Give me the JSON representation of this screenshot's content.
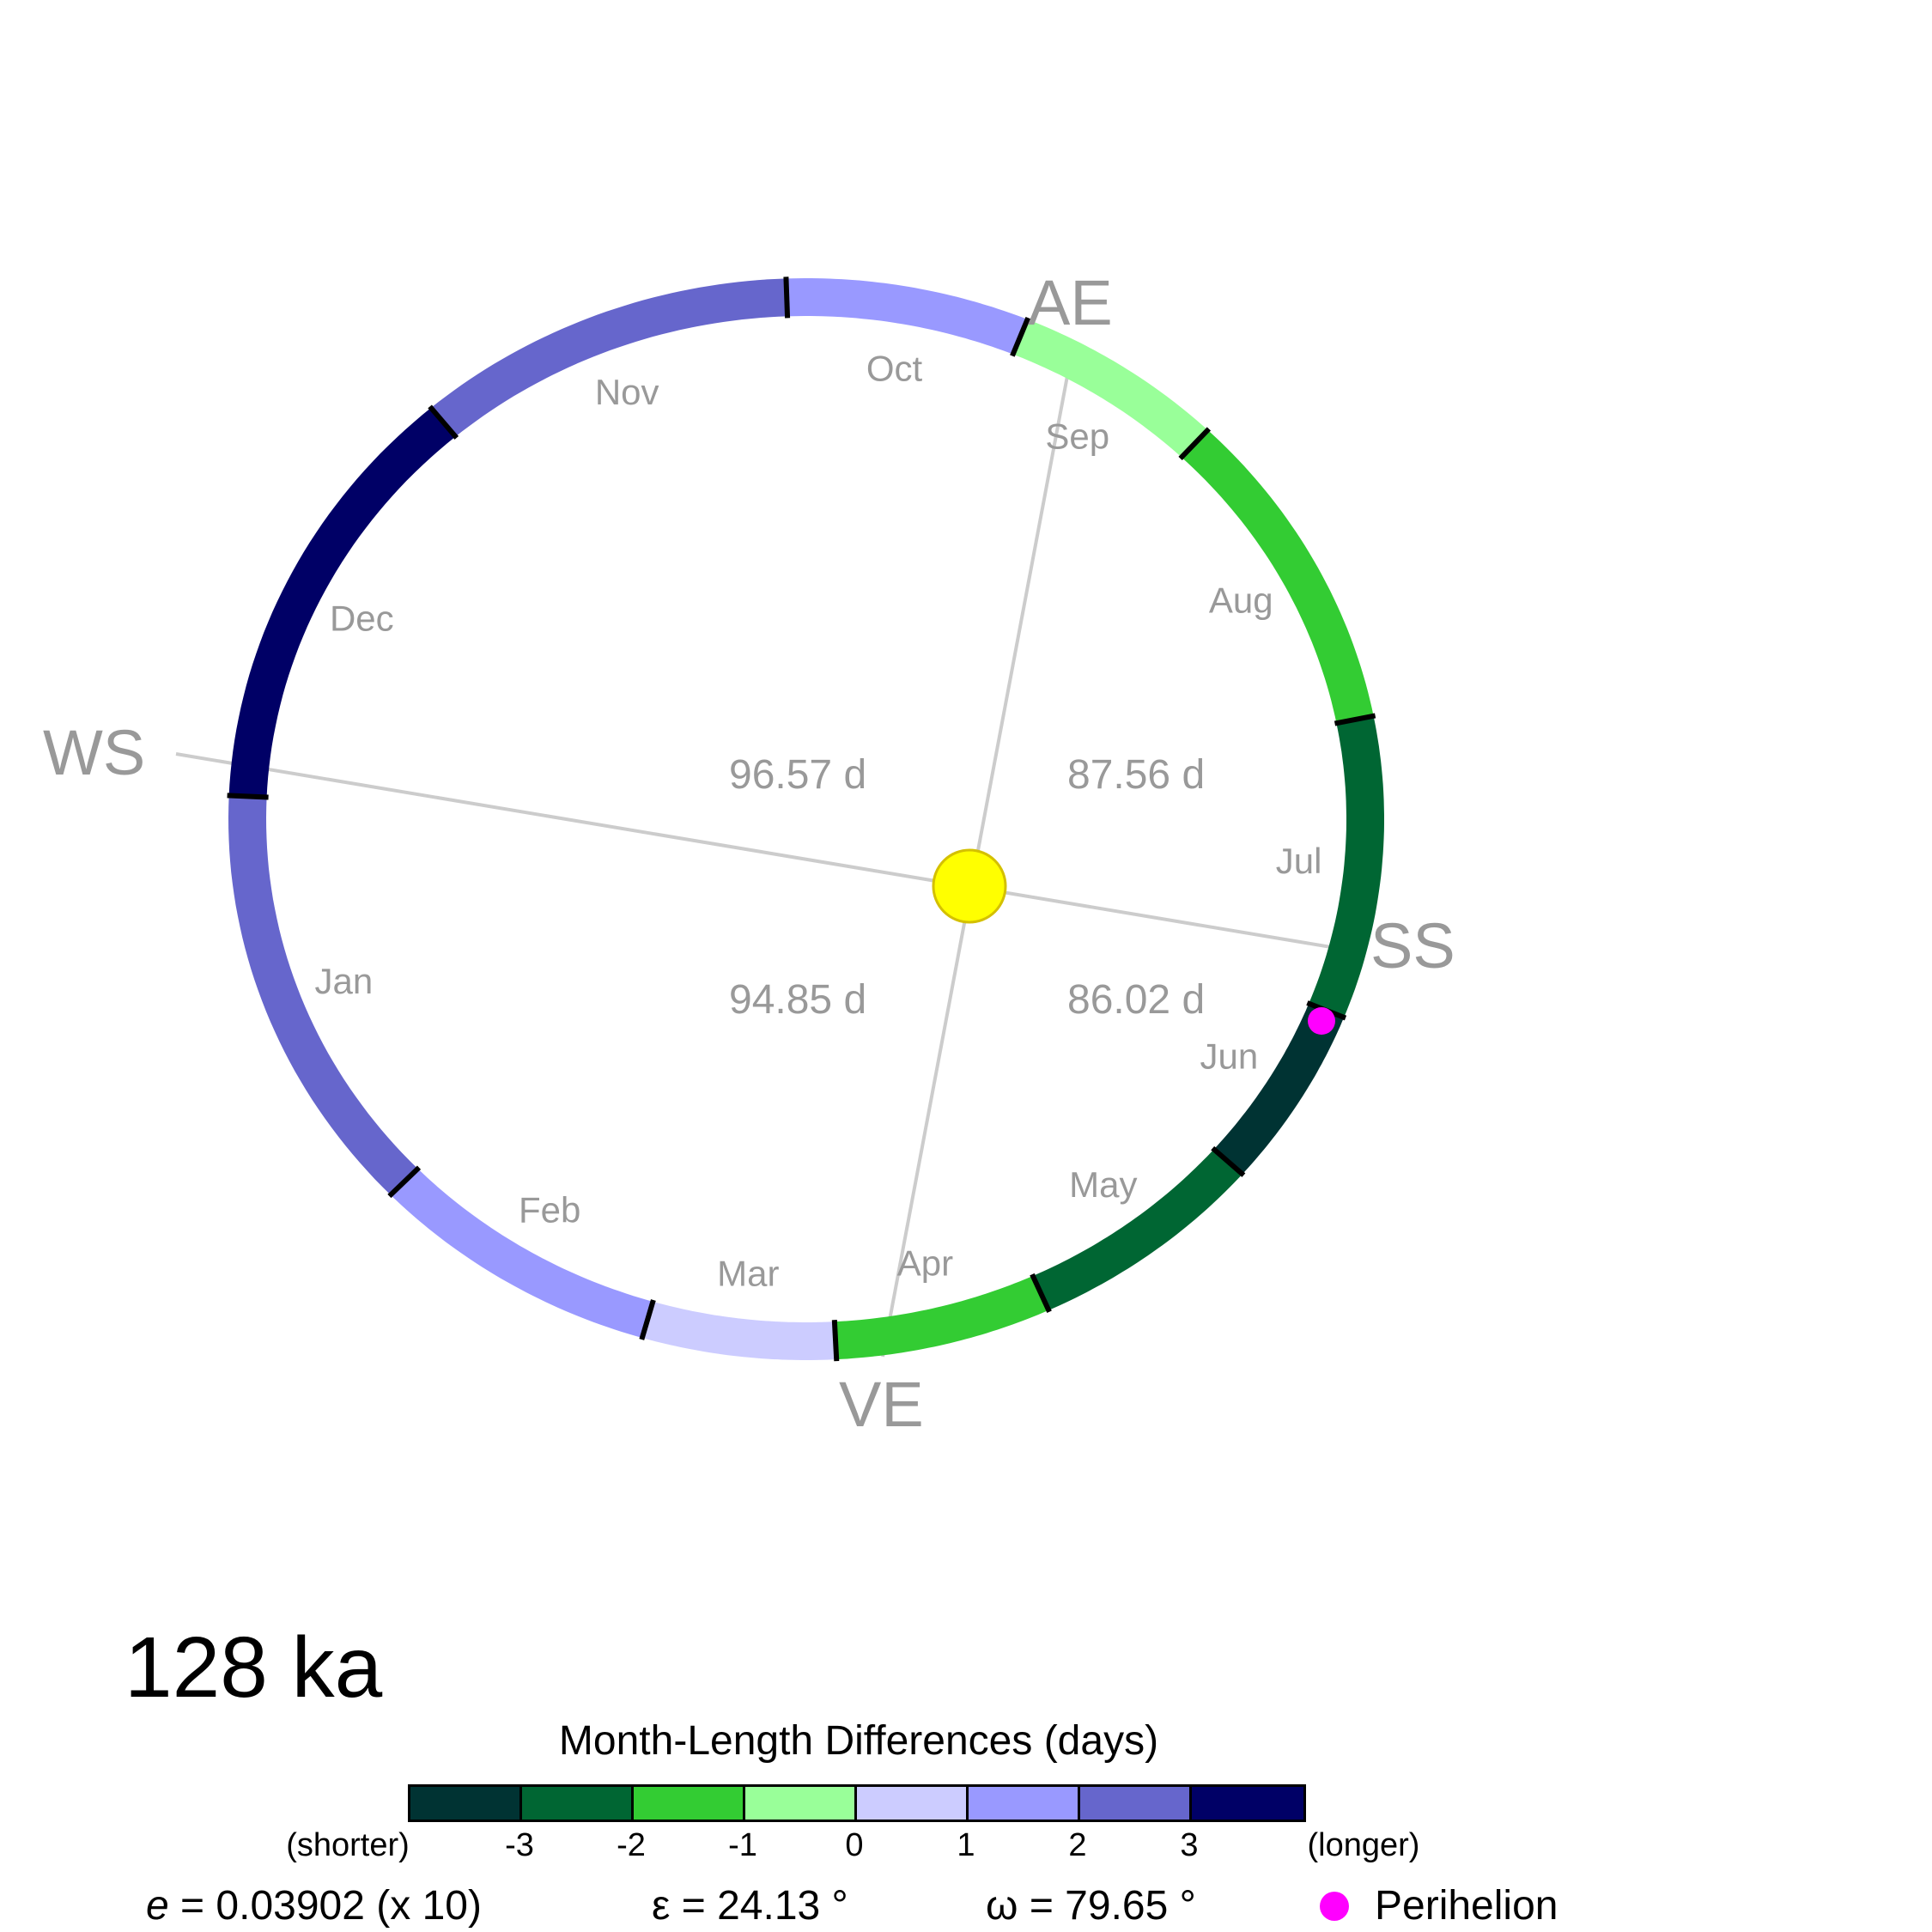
{
  "age_label": "128 ka",
  "colors": {
    "sun_fill": "#FFFF00",
    "sun_stroke": "#D4C000",
    "axis_line": "#CCCCCC",
    "perihelion": "#FF00FF",
    "tick": "#000000",
    "label_gray": "#999999"
  },
  "seasons": [
    {
      "key": "ae",
      "label": "AE"
    },
    {
      "key": "ws",
      "label": "WS"
    },
    {
      "key": "ss",
      "label": "SS"
    },
    {
      "key": "ve",
      "label": "VE"
    }
  ],
  "season_durations": [
    {
      "key": "ae_to_ws",
      "label": "96.57 d"
    },
    {
      "key": "ss_to_ae",
      "label": "87.56 d"
    },
    {
      "key": "ws_to_ve",
      "label": "94.85 d"
    },
    {
      "key": "ve_to_ss",
      "label": "86.02 d"
    }
  ],
  "months": [
    {
      "name": "Jan",
      "color": "#6666CC"
    },
    {
      "name": "Feb",
      "color": "#9999FF"
    },
    {
      "name": "Mar",
      "color": "#CCCCFF"
    },
    {
      "name": "Apr",
      "color": "#33CC33"
    },
    {
      "name": "May",
      "color": "#006633"
    },
    {
      "name": "Jun",
      "color": "#003333"
    },
    {
      "name": "Jul",
      "color": "#006633"
    },
    {
      "name": "Aug",
      "color": "#33CC33"
    },
    {
      "name": "Sep",
      "color": "#99FF99"
    },
    {
      "name": "Oct",
      "color": "#9999FF"
    },
    {
      "name": "Nov",
      "color": "#6666CC"
    },
    {
      "name": "Dec",
      "color": "#000066"
    }
  ],
  "legend": {
    "title": "Month-Length Differences (days)",
    "colors": [
      "#003333",
      "#006633",
      "#33CC33",
      "#99FF99",
      "#CCCCFF",
      "#9999FF",
      "#6666CC",
      "#000066"
    ],
    "tick_labels": [
      "(shorter)",
      "-3",
      "-2",
      "-1",
      "0",
      "1",
      "2",
      "3",
      "(longer)"
    ]
  },
  "parameters": {
    "eccentricity_symbol": "e",
    "eccentricity_text": " = 0.03902 (x 10)",
    "obliquity_text": "ε = 24.13 °",
    "perihelion_longitude_text": "ω = 79.65 °"
  },
  "perihelion_legend_label": "Perihelion"
}
